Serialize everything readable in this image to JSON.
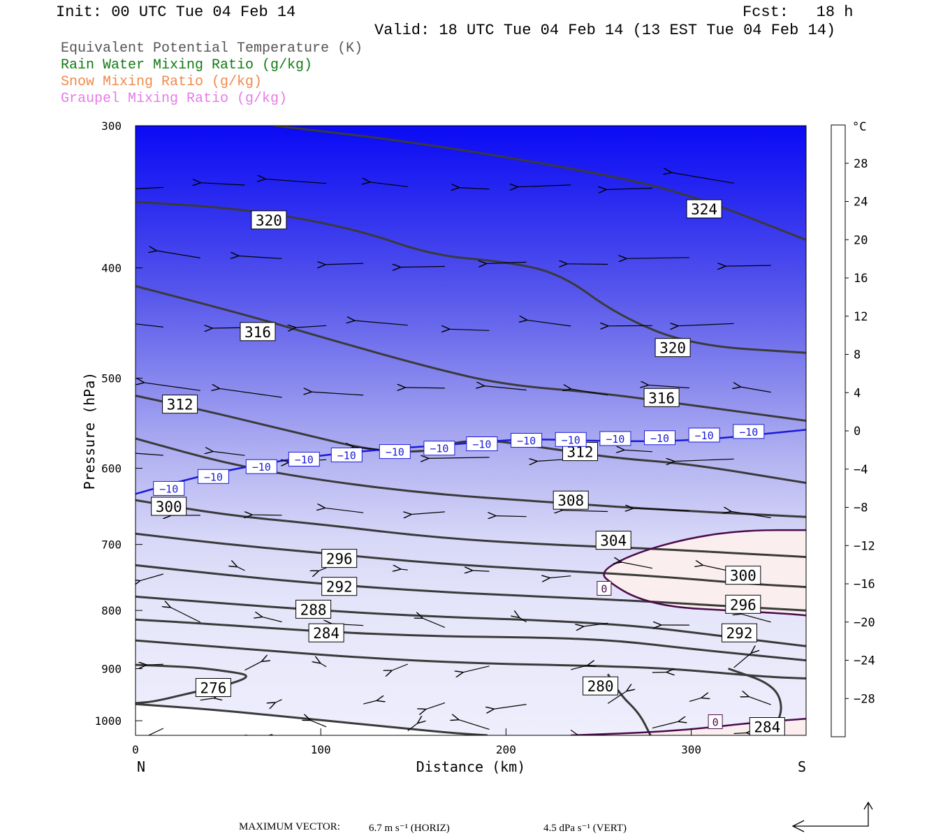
{
  "header": {
    "init": "Init: 00 UTC Tue 04 Feb 14",
    "fcst": "Fcst:   18 h",
    "valid": "Valid: 18 UTC Tue 04 Feb 14 (13 EST Tue 04 Feb 14)"
  },
  "legend": [
    {
      "label": "Equivalent Potential Temperature (K)",
      "color": "#555555"
    },
    {
      "label": "Rain Water Mixing Ratio (g/kg)",
      "color": "#137a13"
    },
    {
      "label": "Snow Mixing Ratio (g/kg)",
      "color": "#f08a4b"
    },
    {
      "label": "Graupel Mixing Ratio (g/kg)",
      "color": "#e67ce6"
    }
  ],
  "chart_data": {
    "type": "contour cross-section",
    "xlabel": "Distance (km)",
    "ylabel": "Pressure (hPa)",
    "x_end_labels": {
      "left": "N",
      "right": "S"
    },
    "xlim": [
      0,
      362
    ],
    "ylim": [
      1030,
      300
    ],
    "y_scale": "log",
    "x_ticks": [
      0,
      100,
      200,
      300
    ],
    "y_ticks": [
      300,
      400,
      500,
      600,
      700,
      800,
      900,
      1000
    ],
    "colorbar": {
      "unit": "°C",
      "ticks": [
        28,
        24,
        20,
        16,
        12,
        8,
        4,
        0,
        -4,
        -8,
        -12,
        -16,
        -20,
        -24,
        -28
      ],
      "range": [
        -32,
        32
      ]
    },
    "theta_e_contours": [
      {
        "level": 324,
        "points": [
          [
            75,
            300
          ],
          [
            150,
            310
          ],
          [
            250,
            330
          ],
          [
            300,
            345
          ],
          [
            362,
            378
          ]
        ]
      },
      {
        "level": 320,
        "points": [
          [
            0,
            350
          ],
          [
            60,
            355
          ],
          [
            120,
            370
          ],
          [
            160,
            390
          ],
          [
            200,
            395
          ],
          [
            230,
            405
          ],
          [
            260,
            440
          ],
          [
            300,
            468
          ],
          [
            362,
            475
          ]
        ]
      },
      {
        "level": 316,
        "points": [
          [
            0,
            415
          ],
          [
            60,
            440
          ],
          [
            100,
            460
          ],
          [
            160,
            490
          ],
          [
            200,
            507
          ],
          [
            250,
            515
          ],
          [
            300,
            528
          ],
          [
            362,
            545
          ]
        ]
      },
      {
        "level": 312,
        "points": [
          [
            0,
            518
          ],
          [
            40,
            535
          ],
          [
            90,
            560
          ],
          [
            130,
            580
          ],
          [
            160,
            580
          ],
          [
            170,
            570
          ],
          [
            190,
            566
          ],
          [
            225,
            577
          ],
          [
            260,
            588
          ],
          [
            300,
            595
          ],
          [
            362,
            618
          ]
        ]
      },
      {
        "level": 308,
        "points": [
          [
            0,
            565
          ],
          [
            50,
            595
          ],
          [
            100,
            615
          ],
          [
            160,
            632
          ],
          [
            220,
            642
          ],
          [
            280,
            652
          ],
          [
            362,
            662
          ]
        ]
      },
      {
        "level": 304,
        "points": [
          [
            0,
            640
          ],
          [
            50,
            660
          ],
          [
            100,
            672
          ],
          [
            160,
            690
          ],
          [
            220,
            700
          ],
          [
            280,
            706
          ],
          [
            362,
            718
          ]
        ]
      },
      {
        "level": 300,
        "points": [
          [
            0,
            685
          ],
          [
            50,
            700
          ],
          [
            100,
            712
          ],
          [
            160,
            727
          ],
          [
            220,
            737
          ],
          [
            280,
            746
          ],
          [
            330,
            758
          ],
          [
            362,
            763
          ]
        ]
      },
      {
        "level": 296,
        "points": [
          [
            0,
            730
          ],
          [
            50,
            745
          ],
          [
            100,
            758
          ],
          [
            160,
            770
          ],
          [
            220,
            778
          ],
          [
            280,
            786
          ],
          [
            330,
            795
          ],
          [
            362,
            800
          ]
        ]
      },
      {
        "level": 292,
        "points": [
          [
            0,
            778
          ],
          [
            40,
            787
          ],
          [
            100,
            800
          ],
          [
            160,
            810
          ],
          [
            220,
            816
          ],
          [
            270,
            825
          ],
          [
            310,
            840
          ],
          [
            362,
            860
          ]
        ]
      },
      {
        "level": 288,
        "points": [
          [
            0,
            815
          ],
          [
            40,
            822
          ],
          [
            100,
            835
          ],
          [
            160,
            843
          ],
          [
            220,
            845
          ],
          [
            260,
            850
          ],
          [
            300,
            865
          ],
          [
            362,
            885
          ]
        ]
      },
      {
        "level": 284,
        "points": [
          [
            0,
            850
          ],
          [
            60,
            865
          ],
          [
            120,
            880
          ],
          [
            180,
            890
          ],
          [
            250,
            895
          ],
          [
            290,
            900
          ],
          [
            340,
            915
          ],
          [
            362,
            918
          ]
        ]
      },
      {
        "level": 280,
        "points": [
          [
            0,
            893
          ],
          [
            30,
            897
          ],
          [
            50,
            905
          ],
          [
            63,
            913
          ],
          [
            50,
            930
          ],
          [
            30,
            945
          ],
          [
            10,
            962
          ],
          [
            0,
            965
          ]
        ]
      },
      {
        "level": 276,
        "points": [
          [
            0,
            967
          ],
          [
            40,
            977
          ],
          [
            90,
            995
          ],
          [
            130,
            1010
          ],
          [
            170,
            1025
          ],
          [
            190,
            1030
          ]
        ]
      }
    ],
    "theta_e_surface_contour": [
      [
        255,
        910
      ],
      [
        262,
        950
      ],
      [
        272,
        985
      ],
      [
        278,
        1030
      ]
    ],
    "theta_e_284_right": [
      [
        320,
        900
      ],
      [
        345,
        930
      ],
      [
        350,
        980
      ],
      [
        342,
        1030
      ]
    ],
    "isotherm_minus10": {
      "level": -10,
      "color": "#1a1ad9",
      "points": [
        [
          0,
          632
        ],
        [
          30,
          612
        ],
        [
          60,
          598
        ],
        [
          90,
          587
        ],
        [
          130,
          578
        ],
        [
          170,
          572
        ],
        [
          210,
          565
        ],
        [
          250,
          568
        ],
        [
          300,
          568
        ],
        [
          362,
          555
        ]
      ]
    },
    "isotherm_zero_upper": {
      "level": 0,
      "color": "#4a0a4a",
      "points": [
        [
          362,
          680
        ],
        [
          330,
          680
        ],
        [
          300,
          690
        ],
        [
          270,
          712
        ],
        [
          250,
          740
        ],
        [
          258,
          760
        ],
        [
          270,
          780
        ],
        [
          290,
          795
        ],
        [
          320,
          800
        ],
        [
          350,
          805
        ],
        [
          362,
          808
        ]
      ]
    },
    "isotherm_zero_lower": {
      "level": 0,
      "color": "#4a0a4a",
      "points": [
        [
          235,
          1030
        ],
        [
          270,
          1025
        ],
        [
          300,
          1018
        ],
        [
          330,
          1005
        ],
        [
          362,
          996
        ]
      ]
    },
    "contour_labels": [
      {
        "text": "324",
        "x": 307,
        "y": 355
      },
      {
        "text": "320",
        "x": 72,
        "y": 363
      },
      {
        "text": "316",
        "x": 66,
        "y": 455
      },
      {
        "text": "320",
        "x": 290,
        "y": 470
      },
      {
        "text": "312",
        "x": 24,
        "y": 527
      },
      {
        "text": "316",
        "x": 284,
        "y": 520
      },
      {
        "text": "312",
        "x": 240,
        "y": 580
      },
      {
        "text": "308",
        "x": 235,
        "y": 640
      },
      {
        "text": "300",
        "x": 18,
        "y": 648
      },
      {
        "text": "304",
        "x": 258,
        "y": 694
      },
      {
        "text": "296",
        "x": 110,
        "y": 720
      },
      {
        "text": "300",
        "x": 328,
        "y": 745
      },
      {
        "text": "292",
        "x": 110,
        "y": 762
      },
      {
        "text": "296",
        "x": 328,
        "y": 790
      },
      {
        "text": "288",
        "x": 96,
        "y": 798
      },
      {
        "text": "284",
        "x": 103,
        "y": 837
      },
      {
        "text": "292",
        "x": 326,
        "y": 837
      },
      {
        "text": "280",
        "x": 251,
        "y": 932
      },
      {
        "text": "276",
        "x": 42,
        "y": 935
      },
      {
        "text": "284",
        "x": 341,
        "y": 1012
      }
    ],
    "isotherm_labels": [
      {
        "text": "−10",
        "x": 18,
        "y": 625
      },
      {
        "text": "−10",
        "x": 42,
        "y": 610
      },
      {
        "text": "−10",
        "x": 68,
        "y": 598
      },
      {
        "text": "−10",
        "x": 91,
        "y": 589
      },
      {
        "text": "−10",
        "x": 114,
        "y": 584
      },
      {
        "text": "−10",
        "x": 140,
        "y": 580
      },
      {
        "text": "−10",
        "x": 164,
        "y": 576
      },
      {
        "text": "−10",
        "x": 187,
        "y": 571
      },
      {
        "text": "−10",
        "x": 211,
        "y": 567
      },
      {
        "text": "−10",
        "x": 235,
        "y": 566
      },
      {
        "text": "−10",
        "x": 259,
        "y": 565
      },
      {
        "text": "−10",
        "x": 283,
        "y": 564
      },
      {
        "text": "−10",
        "x": 307,
        "y": 561
      },
      {
        "text": "−10",
        "x": 331,
        "y": 557
      },
      {
        "text": "0",
        "x": 253,
        "y": 765
      },
      {
        "text": "0",
        "x": 313,
        "y": 1002
      }
    ],
    "temperature_field_note": "shading ranges from about -32 °C at 300 hPa to about +2 °C near the surface on the south side"
  },
  "footer": {
    "label": "MAXIMUM VECTOR:",
    "horiz": "6.7 m s⁻¹ (HORIZ)",
    "vert": "4.5 dPa s⁻¹ (VERT)"
  }
}
